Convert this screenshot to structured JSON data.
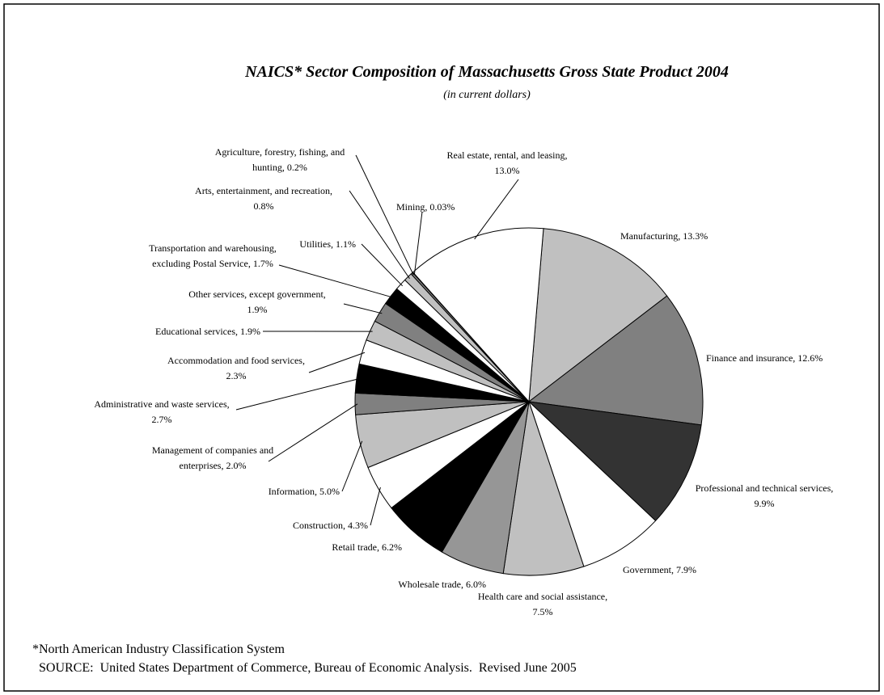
{
  "chart_data": {
    "type": "pie",
    "title": "NAICS* Sector Composition of Massachusetts Gross State Product 2004",
    "subtitle": "(in current dollars)",
    "labels": [
      [
        "Manufacturing, 13.3%"
      ],
      [
        "Finance and insurance, 12.6%"
      ],
      [
        "Professional and technical services,",
        "9.9%"
      ],
      [
        "Government, 7.9%"
      ],
      [
        "Health care and social assistance,",
        "7.5%"
      ],
      [
        "Wholesale trade, 6.0%"
      ],
      [
        "Retail trade, 6.2%"
      ],
      [
        "Construction, 4.3%"
      ],
      [
        "Information, 5.0%"
      ],
      [
        "Management of companies and",
        "enterprises, 2.0%"
      ],
      [
        "Administrative and waste services,",
        "2.7%"
      ],
      [
        "Accommodation and food services,",
        "2.3%"
      ],
      [
        "Educational services, 1.9%"
      ],
      [
        "Other services, except government,",
        "1.9%"
      ],
      [
        "Transportation and warehousing,",
        "excluding Postal Service, 1.7%"
      ],
      [
        "Utilities, 1.1%"
      ],
      [
        "Arts, entertainment, and recreation,",
        "0.8%"
      ],
      [
        "Agriculture, forestry, fishing, and",
        "hunting, 0.2%"
      ],
      [
        "Mining, 0.03%"
      ],
      [
        "Real estate, rental, and leasing,",
        "13.0%"
      ]
    ],
    "values": [
      13.3,
      12.6,
      9.9,
      7.9,
      7.5,
      6.0,
      6.2,
      4.3,
      5.0,
      2.0,
      2.7,
      2.3,
      1.9,
      1.9,
      1.7,
      1.1,
      0.8,
      0.2,
      0.03,
      13.0
    ],
    "colors": [
      "#c0c0c0",
      "#808080",
      "#333333",
      "#ffffff",
      "#c0c0c0",
      "#969696",
      "#000000",
      "#ffffff",
      "#c0c0c0",
      "#808080",
      "#000000",
      "#ffffff",
      "#c0c0c0",
      "#808080",
      "#000000",
      "#ffffff",
      "#c0c0c0",
      "#808080",
      "#000000",
      "#ffffff"
    ],
    "footnote": "*North American Industry Classification System",
    "source": "SOURCE:  United States Department of Commerce, Bureau of Economic Analysis.  Revised June 2005"
  }
}
